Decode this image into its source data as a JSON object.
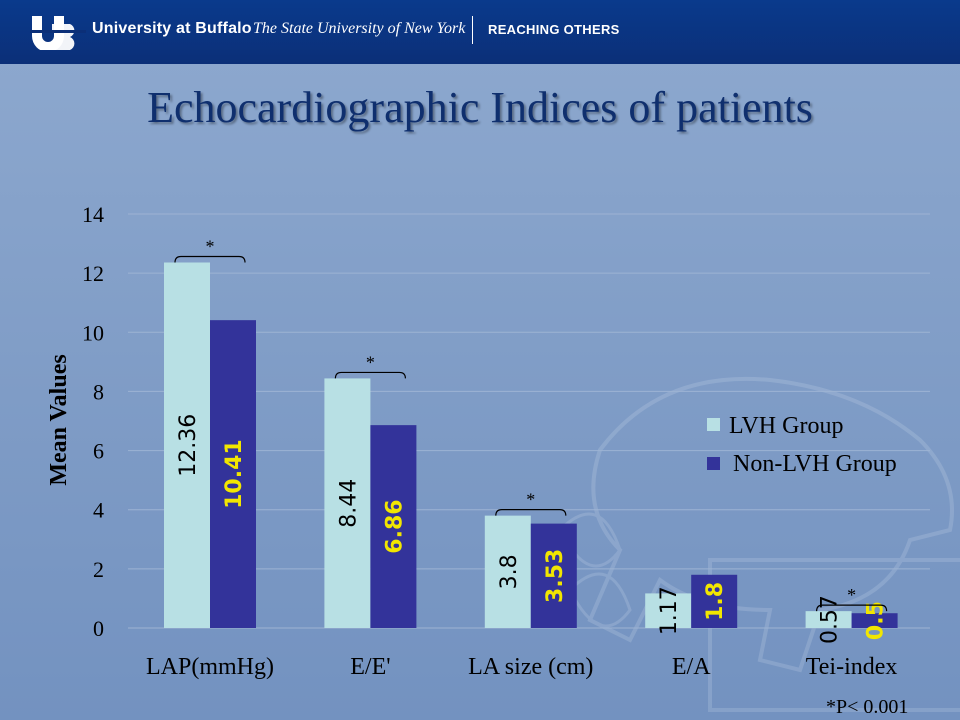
{
  "header": {
    "brand": "University at Buffalo",
    "suny": "The State University of New York",
    "tagline": "REACHING OTHERS"
  },
  "title": "Echocardiographic Indices of patients",
  "footnote": "*P< 0.001",
  "colors": {
    "lvh": "#b8e0e4",
    "nonlvh": "#33339a",
    "nonlvh_label": "#f2e600",
    "title": "#0f2f6e"
  },
  "chart_data": {
    "type": "bar",
    "title": "Echocardiographic Indices of patients",
    "xlabel": "",
    "ylabel": "Mean Values",
    "ylim": [
      0,
      14
    ],
    "yticks": [
      0,
      2,
      4,
      6,
      8,
      10,
      12,
      14
    ],
    "grid": true,
    "legend_position": "right",
    "categories": [
      "LAP(mmHg)",
      "E/E'",
      "LA size (cm)",
      "E/A",
      "Tei-index"
    ],
    "series": [
      {
        "name": "LVH Group",
        "values": [
          12.36,
          8.44,
          3.8,
          1.17,
          0.57
        ],
        "labels": [
          "12.36",
          "8.44",
          "3.8",
          "1.17",
          "0.57"
        ]
      },
      {
        "name": "Non-LVH Group",
        "values": [
          10.41,
          6.86,
          3.53,
          1.8,
          0.5
        ],
        "labels": [
          "10.41",
          "6.86",
          "3.53",
          "1.8",
          "0.5"
        ]
      }
    ],
    "significance_marker": "*",
    "significant_categories": [
      0,
      1,
      2,
      4
    ]
  }
}
